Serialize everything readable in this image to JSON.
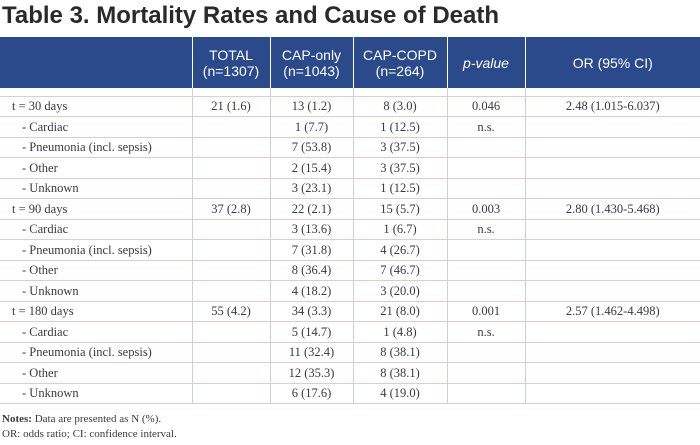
{
  "title": "Table 3. Mortality Rates and Cause of Death",
  "headers": {
    "total": [
      "TOTAL",
      "(n=1307)"
    ],
    "cap_only": [
      "CAP-only",
      "(n=1043)"
    ],
    "cap_copd": [
      "CAP-COPD",
      "(n=264)"
    ],
    "p_value": "p-value",
    "or": "OR (95% CI)"
  },
  "rows": [
    {
      "label": "t = 30 days",
      "total": "21 (1.6)",
      "cap_only": "13 (1.2)",
      "cap_copd": "8 (3.0)",
      "p": "0.046",
      "or": "2.48 (1.015-6.037)"
    },
    {
      "label": "- Cardiac",
      "total": "",
      "cap_only": "1 (7.7)",
      "cap_copd": "1 (12.5)",
      "p": "n.s.",
      "or": ""
    },
    {
      "label": "- Pneumonia (incl. sepsis)",
      "total": "",
      "cap_only": "7 (53.8)",
      "cap_copd": "3 (37.5)",
      "p": "",
      "or": ""
    },
    {
      "label": "- Other",
      "total": "",
      "cap_only": "2 (15.4)",
      "cap_copd": "3 (37.5)",
      "p": "",
      "or": ""
    },
    {
      "label": "- Unknown",
      "total": "",
      "cap_only": "3 (23.1)",
      "cap_copd": "1 (12.5)",
      "p": "",
      "or": ""
    },
    {
      "label": "t = 90 days",
      "total": "37 (2.8)",
      "cap_only": "22 (2.1)",
      "cap_copd": "15 (5.7)",
      "p": "0.003",
      "or": "2.80 (1.430-5.468)"
    },
    {
      "label": "- Cardiac",
      "total": "",
      "cap_only": "3 (13.6)",
      "cap_copd": "1 (6.7)",
      "p": "n.s.",
      "or": ""
    },
    {
      "label": "- Pneumonia (incl. sepsis)",
      "total": "",
      "cap_only": "7 (31.8)",
      "cap_copd": "4 (26.7)",
      "p": "",
      "or": ""
    },
    {
      "label": "- Other",
      "total": "",
      "cap_only": "8 (36.4)",
      "cap_copd": "7 (46.7)",
      "p": "",
      "or": ""
    },
    {
      "label": "- Unknown",
      "total": "",
      "cap_only": "4 (18.2)",
      "cap_copd": "3 (20.0)",
      "p": "",
      "or": ""
    },
    {
      "label": "t = 180 days",
      "total": "55 (4.2)",
      "cap_only": "34 (3.3)",
      "cap_copd": "21 (8.0)",
      "p": "0.001",
      "or": "2.57 (1.462-4.498)"
    },
    {
      "label": "- Cardiac",
      "total": "",
      "cap_only": "5 (14.7)",
      "cap_copd": "1 (4.8)",
      "p": "n.s.",
      "or": ""
    },
    {
      "label": "- Pneumonia (incl. sepsis)",
      "total": "",
      "cap_only": "11 (32.4)",
      "cap_copd": "8 (38.1)",
      "p": "",
      "or": ""
    },
    {
      "label": "- Other",
      "total": "",
      "cap_only": "12 (35.3)",
      "cap_copd": "8 (38.1)",
      "p": "",
      "or": ""
    },
    {
      "label": "- Unknown",
      "total": "",
      "cap_only": "6 (17.6)",
      "cap_copd": "4 (19.0)",
      "p": "",
      "or": ""
    }
  ],
  "notes": {
    "label": "Notes:",
    "line1": "Data are presented as N (%).",
    "line2": "OR: odds ratio; CI:  confidence interval."
  }
}
